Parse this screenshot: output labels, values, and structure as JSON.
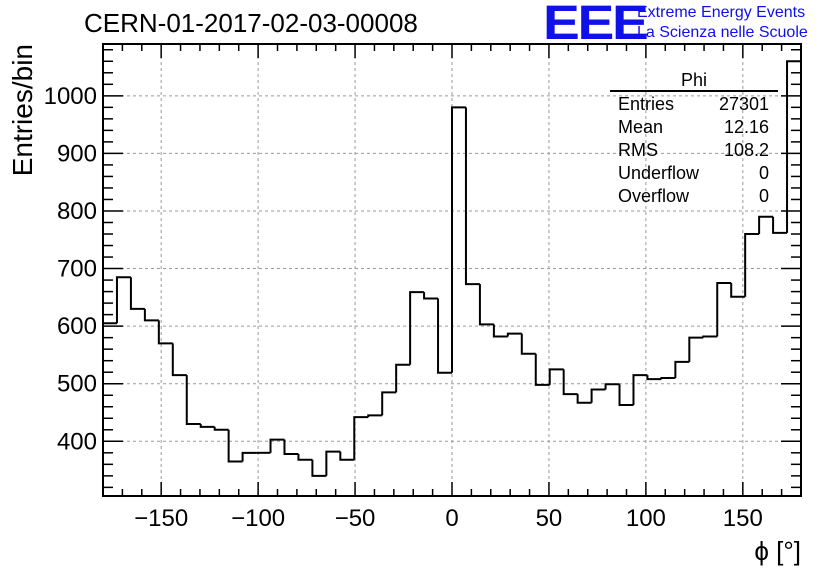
{
  "header": {
    "title": "CERN-01-2017-02-03-00008",
    "logo_text": "EEE",
    "logo_line1": "Extreme Energy Events",
    "logo_line2": "La Scienza nelle Scuole",
    "logo_color": "#1010e8"
  },
  "stats_box": {
    "name": "Phi",
    "rows": [
      {
        "label": "Entries",
        "value": "27301"
      },
      {
        "label": "Mean",
        "value": "12.16"
      },
      {
        "label": "RMS",
        "value": "108.2"
      },
      {
        "label": "Underflow",
        "value": "0"
      },
      {
        "label": "Overflow",
        "value": "0"
      }
    ]
  },
  "chart_data": {
    "type": "histogram",
    "title": "CERN-01-2017-02-03-00008",
    "xlabel": "ϕ [°]",
    "ylabel": "Entries/bin",
    "xlim": [
      -180,
      180
    ],
    "ylim": [
      305,
      1090
    ],
    "grid": true,
    "bin_width": 7.2,
    "x_ticks": [
      -150,
      -100,
      -50,
      0,
      50,
      100,
      150
    ],
    "x_tick_labels": [
      "−150",
      "−100",
      "−50",
      "0",
      "50",
      "100",
      "150"
    ],
    "y_ticks": [
      400,
      500,
      600,
      700,
      800,
      900,
      1000
    ],
    "y_tick_labels": [
      "400",
      "500",
      "600",
      "700",
      "800",
      "900",
      "1000"
    ],
    "bin_edges_start": -180,
    "values": [
      605,
      685,
      630,
      610,
      570,
      515,
      430,
      425,
      420,
      365,
      380,
      380,
      403,
      378,
      368,
      340,
      382,
      368,
      442,
      445,
      485,
      533,
      659,
      648,
      519,
      980,
      673,
      603,
      582,
      587,
      552,
      498,
      525,
      482,
      467,
      490,
      499,
      463,
      515,
      508,
      510,
      538,
      580,
      582,
      675,
      651,
      760,
      790,
      762,
      1060
    ]
  }
}
